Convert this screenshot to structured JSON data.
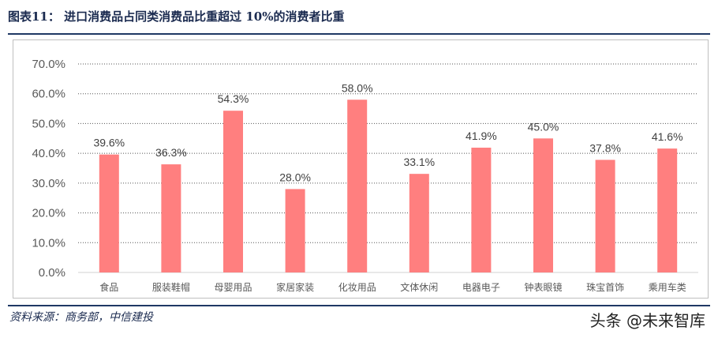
{
  "header": {
    "title": "图表11：   进口消费品占同类消费品比重超过 10%的消费者比重"
  },
  "footer": {
    "source": "资料来源：商务部，中信建投",
    "watermark": "头条 @未来智库"
  },
  "chart_data": {
    "type": "bar",
    "categories": [
      "食品",
      "服装鞋帽",
      "母婴用品",
      "家居家装",
      "化妆用品",
      "文体休闲",
      "电器电子",
      "钟表眼镜",
      "珠宝首饰",
      "乘用车类"
    ],
    "values": [
      39.6,
      36.3,
      54.3,
      28.0,
      58.0,
      33.1,
      41.9,
      45.0,
      37.8,
      41.6
    ],
    "data_labels": [
      "39.6%",
      "36.3%",
      "54.3%",
      "28.0%",
      "58.0%",
      "33.1%",
      "41.9%",
      "45.0%",
      "37.8%",
      "41.6%"
    ],
    "yticks": [
      "0.0%",
      "10.0%",
      "20.0%",
      "30.0%",
      "40.0%",
      "50.0%",
      "60.0%",
      "70.0%"
    ],
    "ylim": [
      0,
      70
    ],
    "grid": true,
    "bar_color": "#ff7f7f",
    "title": "",
    "xlabel": "",
    "ylabel": ""
  }
}
